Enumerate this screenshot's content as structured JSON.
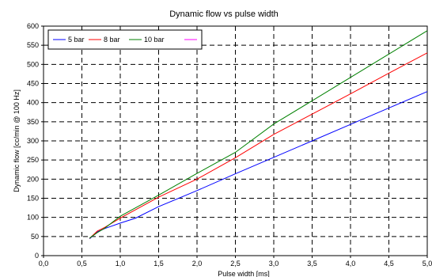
{
  "chart_data": {
    "type": "line",
    "title": "Dynamic flow vs pulse width",
    "xlabel": "Pulse width [ms]",
    "ylabel": "Dynamic flow [cc/min @ 100 Hz]",
    "xlim": [
      0,
      5
    ],
    "ylim": [
      0,
      600
    ],
    "x_ticks": [
      0,
      0.5,
      1,
      1.5,
      2,
      2.5,
      3,
      3.5,
      4,
      4.5,
      5
    ],
    "x_tick_labels": [
      "0,0",
      "0,5",
      "1,0",
      "1,5",
      "2,0",
      "2,5",
      "3,0",
      "3,5",
      "4,0",
      "4,5",
      "5,0"
    ],
    "y_ticks": [
      0,
      50,
      100,
      150,
      200,
      250,
      300,
      350,
      400,
      450,
      500,
      550,
      600
    ],
    "y_tick_labels": [
      "0",
      "50",
      "100",
      "150",
      "200",
      "250",
      "300",
      "350",
      "400",
      "450",
      "500",
      "550",
      "600"
    ],
    "grid": true,
    "legend_position": "top-left",
    "series": [
      {
        "name": "5 bar",
        "color": "#0000ff",
        "points": [
          [
            0.6,
            44
          ],
          [
            0.7,
            62
          ],
          [
            0.8,
            71
          ],
          [
            1.0,
            85
          ],
          [
            1.2,
            98
          ],
          [
            1.5,
            128
          ],
          [
            2.0,
            170
          ],
          [
            2.5,
            214
          ],
          [
            3.0,
            257
          ],
          [
            3.5,
            300
          ],
          [
            4.0,
            343
          ],
          [
            4.5,
            386
          ],
          [
            5.0,
            429
          ]
        ]
      },
      {
        "name": "8 bar",
        "color": "#ff0000",
        "points": [
          [
            0.6,
            45
          ],
          [
            0.7,
            64
          ],
          [
            0.8,
            74
          ],
          [
            1.0,
            98
          ],
          [
            1.5,
            153
          ],
          [
            2.0,
            200
          ],
          [
            2.5,
            256
          ],
          [
            3.0,
            317
          ],
          [
            3.5,
            370
          ],
          [
            4.0,
            423
          ],
          [
            4.5,
            477
          ],
          [
            5.0,
            530
          ]
        ]
      },
      {
        "name": "10 bar",
        "color": "#008000",
        "points": [
          [
            0.6,
            46
          ],
          [
            0.7,
            60
          ],
          [
            0.8,
            72
          ],
          [
            1.0,
            103
          ],
          [
            1.5,
            158
          ],
          [
            2.0,
            215
          ],
          [
            2.5,
            270
          ],
          [
            3.0,
            344
          ],
          [
            3.5,
            405
          ],
          [
            4.0,
            466
          ],
          [
            4.5,
            527
          ],
          [
            5.0,
            588
          ]
        ]
      },
      {
        "name": "",
        "color": "#ff00ff",
        "points": []
      }
    ]
  }
}
